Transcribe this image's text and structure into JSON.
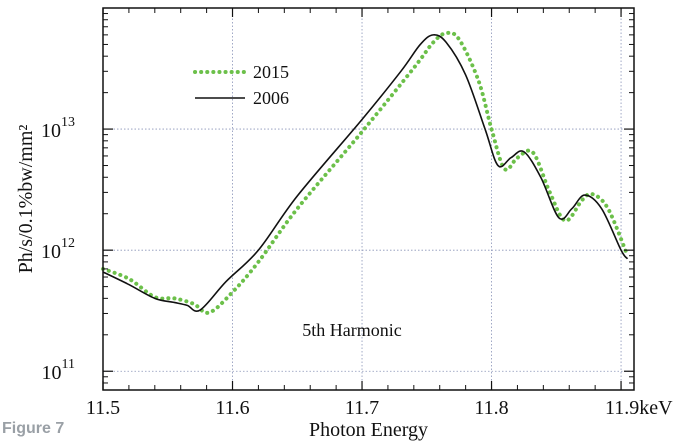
{
  "figure_label": "Figure 7",
  "chart_data": {
    "type": "line",
    "title": "",
    "xlabel": "Photon Energy",
    "ylabel": "Ph/s/0.1%bw/mm²",
    "x_unit": "keV",
    "xlim": [
      11.5,
      11.91
    ],
    "ylim": [
      70000000000.0,
      100000000000000.0
    ],
    "yscale": "log",
    "x_ticks": [
      {
        "value": 11.5,
        "label": "11.5"
      },
      {
        "value": 11.6,
        "label": "11.6"
      },
      {
        "value": 11.7,
        "label": "11.7"
      },
      {
        "value": 11.8,
        "label": "11.8"
      },
      {
        "value": 11.9,
        "label": "11.9keV"
      }
    ],
    "y_ticks": [
      {
        "value": 100000000000.0,
        "base": "10",
        "exp": "11"
      },
      {
        "value": 1000000000000.0,
        "base": "10",
        "exp": "12"
      },
      {
        "value": 10000000000000.0,
        "base": "10",
        "exp": "13"
      }
    ],
    "grid": true,
    "legend_position": "top-left",
    "annotation": "5th Harmonic",
    "series": [
      {
        "name": "2015",
        "color": "#6cc04a",
        "style": "dotted",
        "x": [
          11.5,
          11.52,
          11.54,
          11.555,
          11.57,
          11.582,
          11.6,
          11.62,
          11.65,
          11.7,
          11.74,
          11.755,
          11.765,
          11.775,
          11.79,
          11.8,
          11.81,
          11.82,
          11.832,
          11.845,
          11.857,
          11.87,
          11.878,
          11.89,
          11.905
        ],
        "y": [
          700000000000.0,
          580000000000.0,
          410000000000.0,
          400000000000.0,
          360000000000.0,
          305000000000.0,
          450000000000.0,
          800000000000.0,
          2200000000000.0,
          9500000000000.0,
          32000000000000.0,
          52000000000000.0,
          62000000000000.0,
          55000000000000.0,
          25000000000000.0,
          10000000000000.0,
          4700000000000.0,
          5800000000000.0,
          6400000000000.0,
          3000000000000.0,
          1750000000000.0,
          2600000000000.0,
          2900000000000.0,
          2200000000000.0,
          900000000000.0
        ]
      },
      {
        "name": "2006",
        "color": "#111111",
        "style": "solid",
        "x": [
          11.5,
          11.52,
          11.54,
          11.555,
          11.565,
          11.575,
          11.595,
          11.62,
          11.65,
          11.7,
          11.73,
          11.745,
          11.755,
          11.765,
          11.78,
          11.795,
          11.805,
          11.815,
          11.825,
          11.838,
          11.852,
          11.862,
          11.872,
          11.885,
          11.9,
          11.905
        ],
        "y": [
          660000000000.0,
          520000000000.0,
          400000000000.0,
          370000000000.0,
          350000000000.0,
          320000000000.0,
          550000000000.0,
          1000000000000.0,
          2800000000000.0,
          12000000000000.0,
          30000000000000.0,
          50000000000000.0,
          60000000000000.0,
          52000000000000.0,
          28000000000000.0,
          10000000000000.0,
          5000000000000.0,
          5800000000000.0,
          6500000000000.0,
          4000000000000.0,
          1850000000000.0,
          2200000000000.0,
          2850000000000.0,
          2200000000000.0,
          1000000000000.0,
          850000000000.0
        ]
      }
    ]
  }
}
